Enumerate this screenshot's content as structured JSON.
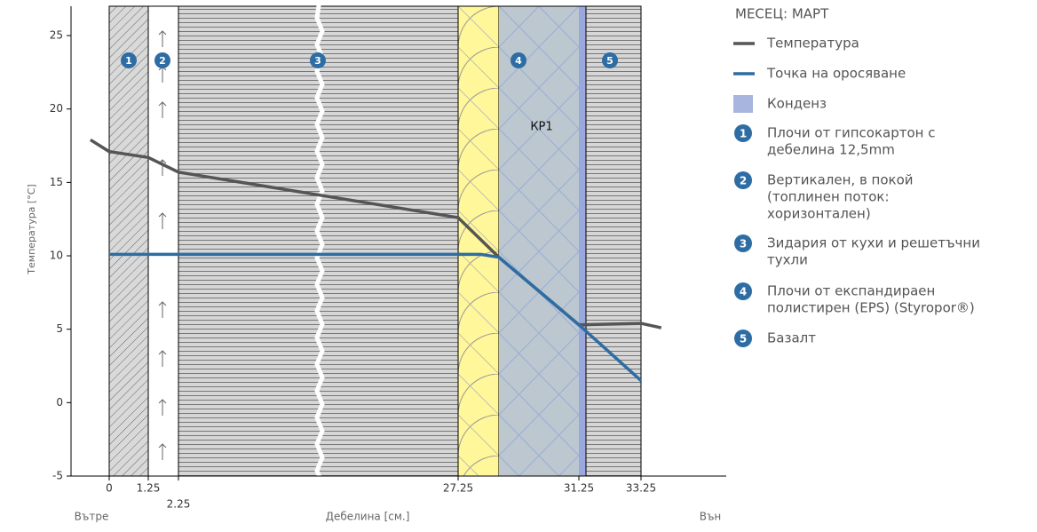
{
  "chart_data": {
    "type": "line",
    "xlabel": "Дебелина [см.]",
    "ylabel": "Температура [°C]",
    "x_left_label": "Вътре",
    "x_right_label": "Вън",
    "annotation": "КР1",
    "ylim": [
      -5,
      27
    ],
    "yticks": [
      -5,
      0,
      5,
      10,
      15,
      20,
      25
    ],
    "xticks": [
      0,
      1.25,
      2.25,
      27.25,
      31.25,
      33.25
    ],
    "series": [
      {
        "name": "Температура",
        "color": "#555555",
        "x": [
          -0.6,
          0,
          1.25,
          2.25,
          27.25,
          28.6,
          31.25,
          33.25,
          33.9
        ],
        "values": [
          17.9,
          17.1,
          16.7,
          15.7,
          12.6,
          9.9,
          5.3,
          5.4,
          5.1
        ]
      },
      {
        "name": "Точка на оросяване",
        "color": "#2e6da4",
        "x": [
          0,
          27.25,
          28.0,
          28.6,
          31.25,
          33.25
        ],
        "values": [
          10.1,
          10.1,
          10.1,
          9.9,
          5.3,
          1.5
        ]
      }
    ],
    "legend": {
      "title": "МЕСЕЦ: МАРТ",
      "condensation": "Конденз",
      "condensation_color": "#a8b5de"
    },
    "layers": [
      {
        "number": "1",
        "lines": [
          "Плочи от гипсокартон с",
          "дебелина 12,5mm"
        ]
      },
      {
        "number": "2",
        "lines": [
          "Вертикален, в покой",
          "(топлинен поток:",
          "хоризонтален)"
        ]
      },
      {
        "number": "3",
        "lines": [
          "Зидария от кухи и решетъчни",
          "тухли"
        ]
      },
      {
        "number": "4",
        "lines": [
          "Плочи от експандираен",
          "полистирен (EPS) (Styropor®)"
        ]
      },
      {
        "number": "5",
        "lines": [
          "Базалт"
        ]
      }
    ]
  }
}
